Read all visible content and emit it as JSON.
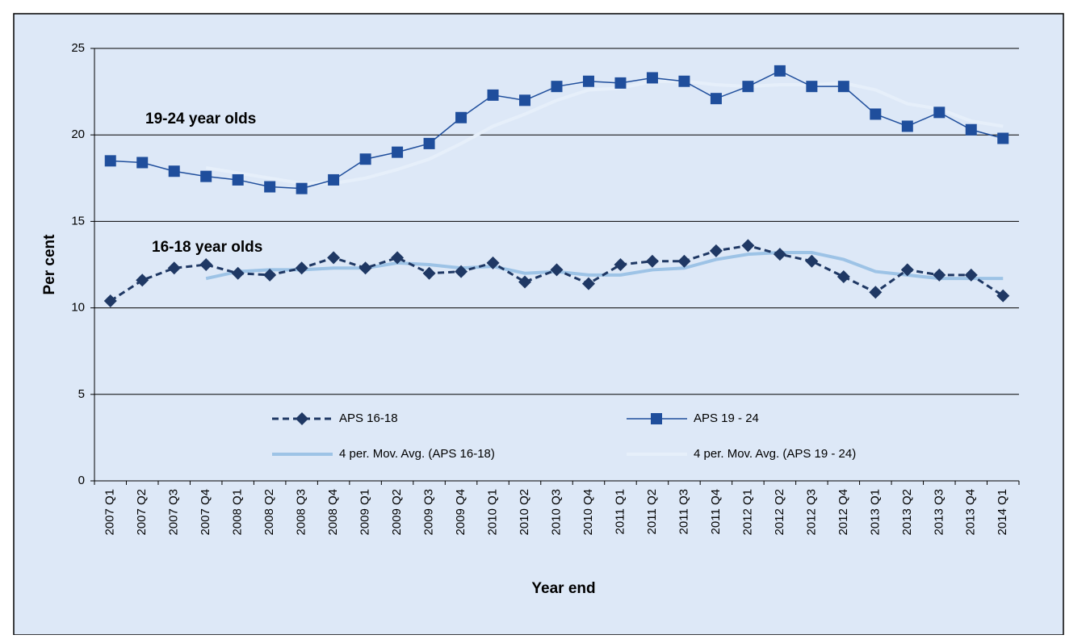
{
  "chart_data": {
    "type": "line",
    "y_label": "Per cent",
    "x_label": "Year end",
    "annotations": [
      "19-24  year olds",
      "16-18  year olds"
    ],
    "categories": [
      "2007 Q1",
      "2007 Q2",
      "2007 Q3",
      "2007 Q4",
      "2008 Q1",
      "2008 Q2",
      "2008 Q3",
      "2008 Q4",
      "2009 Q1",
      "2009 Q2",
      "2009 Q3",
      "2009 Q4",
      "2010 Q1",
      "2010 Q2",
      "2010 Q3",
      "2010 Q4",
      "2011 Q1",
      "2011 Q2",
      "2011 Q3",
      "2011 Q4",
      "2012 Q1",
      "2012 Q2",
      "2012 Q3",
      "2012 Q4",
      "2013 Q1",
      "2013 Q2",
      "2013 Q3",
      "2013 Q4",
      "2014 Q1"
    ],
    "series": [
      {
        "name": "APS 16-18",
        "color": "#1f3864",
        "marker": "diamond",
        "dashed": true,
        "values": [
          10.4,
          11.6,
          12.3,
          12.5,
          12.0,
          11.9,
          12.3,
          12.9,
          12.3,
          12.9,
          12.0,
          12.1,
          12.6,
          11.5,
          12.2,
          11.4,
          12.5,
          12.7,
          12.7,
          13.3,
          13.6,
          13.1,
          12.7,
          11.8,
          10.9,
          12.2,
          11.9,
          11.9,
          10.7
        ]
      },
      {
        "name": "APS 19 - 24",
        "color": "#1f4e9c",
        "marker": "square",
        "dashed": false,
        "values": [
          18.5,
          18.4,
          17.9,
          17.6,
          17.4,
          17.0,
          16.9,
          17.4,
          18.6,
          19.0,
          19.5,
          21.0,
          22.3,
          22.0,
          22.8,
          23.1,
          23.0,
          23.3,
          23.1,
          22.1,
          22.8,
          23.7,
          22.8,
          22.8,
          21.2,
          20.5,
          21.3,
          20.3,
          19.8
        ]
      },
      {
        "name": "4 per. Mov. Avg. (APS 16-18)",
        "color": "#9dc3e6",
        "marker": "none",
        "dashed": false,
        "values": [
          null,
          null,
          null,
          11.7,
          12.1,
          12.2,
          12.2,
          12.3,
          12.3,
          12.6,
          12.5,
          12.3,
          12.4,
          12.0,
          12.1,
          11.9,
          11.9,
          12.2,
          12.3,
          12.8,
          13.1,
          13.2,
          13.2,
          12.8,
          12.1,
          11.9,
          11.7,
          11.7,
          11.7
        ]
      },
      {
        "name": "4 per. Mov. Avg. (APS 19 - 24)",
        "color": "#e6effa",
        "marker": "none",
        "dashed": false,
        "values": [
          null,
          null,
          null,
          18.1,
          17.8,
          17.5,
          17.2,
          17.2,
          17.5,
          18.0,
          18.6,
          19.5,
          20.5,
          21.2,
          22.0,
          22.6,
          22.7,
          23.1,
          23.1,
          22.9,
          22.8,
          22.9,
          22.9,
          23.0,
          22.6,
          21.8,
          21.5,
          20.8,
          20.5
        ]
      }
    ],
    "ylim": [
      0,
      25
    ],
    "yticks": [
      0,
      5,
      10,
      15,
      20,
      25
    ],
    "grid": true
  }
}
